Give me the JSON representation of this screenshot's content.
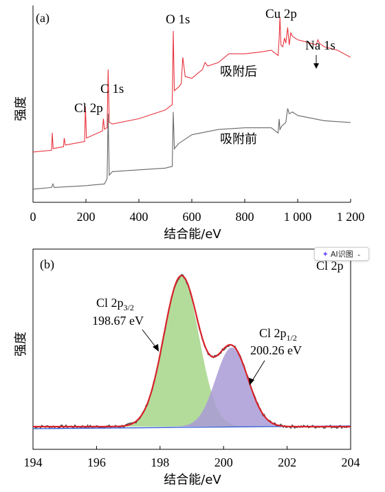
{
  "chart_data": [
    {
      "panel": "(a)",
      "type": "line",
      "ylabel": "强度",
      "xlabel": "结合能/eV",
      "xlim": [
        0,
        1200
      ],
      "x_ticks": [
        0,
        200,
        400,
        600,
        800,
        1000,
        1200
      ],
      "x_tick_labels": [
        "0",
        "200",
        "400",
        "600",
        "800",
        "1 000",
        "1 200"
      ],
      "series": [
        {
          "name": "吸附后",
          "color": "#e8323c",
          "points": [
            [
              0,
              0.31
            ],
            [
              70,
              0.32
            ],
            [
              73,
              0.42
            ],
            [
              76,
              0.33
            ],
            [
              115,
              0.34
            ],
            [
              118,
              0.39
            ],
            [
              122,
              0.35
            ],
            [
              195,
              0.37
            ],
            [
              198,
              0.57
            ],
            [
              202,
              0.39
            ],
            [
              262,
              0.43
            ],
            [
              266,
              0.5
            ],
            [
              270,
              0.44
            ],
            [
              280,
              0.45
            ],
            [
              284,
              0.78
            ],
            [
              288,
              0.48
            ],
            [
              300,
              0.47
            ],
            [
              400,
              0.5
            ],
            [
              500,
              0.55
            ],
            [
              526,
              0.58
            ],
            [
              530,
              1.0
            ],
            [
              534,
              0.66
            ],
            [
              550,
              0.68
            ],
            [
              560,
              0.7
            ],
            [
              566,
              0.85
            ],
            [
              575,
              0.74
            ],
            [
              600,
              0.73
            ],
            [
              640,
              0.78
            ],
            [
              650,
              0.82
            ],
            [
              660,
              0.8
            ],
            [
              700,
              0.82
            ],
            [
              740,
              0.87
            ],
            [
              800,
              0.87
            ],
            [
              860,
              0.88
            ],
            [
              900,
              0.89
            ],
            [
              926,
              0.86
            ],
            [
              930,
              0.96
            ],
            [
              933,
              1.08
            ],
            [
              937,
              0.92
            ],
            [
              944,
              0.91
            ],
            [
              950,
              0.96
            ],
            [
              955,
              0.93
            ],
            [
              962,
              1.02
            ],
            [
              968,
              0.92
            ],
            [
              974,
              0.99
            ],
            [
              980,
              0.97
            ],
            [
              1000,
              0.95
            ],
            [
              1050,
              0.93
            ],
            [
              1070,
              0.92
            ],
            [
              1076,
              0.95
            ],
            [
              1082,
              0.93
            ],
            [
              1100,
              0.91
            ],
            [
              1150,
              0.89
            ],
            [
              1200,
              0.85
            ]
          ]
        },
        {
          "name": "吸附前",
          "color": "#666666",
          "points": [
            [
              0,
              0.02
            ],
            [
              70,
              0.03
            ],
            [
              75,
              0.05
            ],
            [
              80,
              0.03
            ],
            [
              200,
              0.04
            ],
            [
              270,
              0.05
            ],
            [
              280,
              0.08
            ],
            [
              284,
              0.45
            ],
            [
              288,
              0.1
            ],
            [
              300,
              0.12
            ],
            [
              400,
              0.13
            ],
            [
              500,
              0.14
            ],
            [
              526,
              0.15
            ],
            [
              530,
              0.46
            ],
            [
              534,
              0.25
            ],
            [
              550,
              0.28
            ],
            [
              600,
              0.33
            ],
            [
              700,
              0.36
            ],
            [
              800,
              0.37
            ],
            [
              900,
              0.37
            ],
            [
              926,
              0.34
            ],
            [
              930,
              0.42
            ],
            [
              933,
              0.36
            ],
            [
              940,
              0.38
            ],
            [
              955,
              0.4
            ],
            [
              962,
              0.48
            ],
            [
              968,
              0.45
            ],
            [
              980,
              0.46
            ],
            [
              1000,
              0.44
            ],
            [
              1100,
              0.41
            ],
            [
              1200,
              0.4
            ]
          ]
        }
      ],
      "annotations": [
        {
          "text": "O 1s",
          "x": 530,
          "y": 1.0
        },
        {
          "text": "Cu 2p",
          "x": 933,
          "y": 1.08
        },
        {
          "text": "Na 1s",
          "x": 1072,
          "y": 0.93
        },
        {
          "text": "C 1s",
          "x": 284,
          "y": 0.78
        },
        {
          "text": "Cl 2p",
          "x": 198,
          "y": 0.57
        }
      ]
    },
    {
      "panel": "(b)",
      "type": "area",
      "title": "Cl 2p",
      "ylabel": "强度",
      "xlabel": "结合能/eV",
      "xlim": [
        194,
        204
      ],
      "x_ticks": [
        194,
        196,
        198,
        200,
        202,
        204
      ],
      "x_tick_labels": [
        "194",
        "196",
        "198",
        "200",
        "202",
        "204"
      ],
      "components": [
        {
          "name": "Cl 2p3/2",
          "center": 198.67,
          "height": 0.95,
          "fwhm": 1.3,
          "color": "#a6d68a"
        },
        {
          "name": "Cl 2p1/2",
          "center": 200.26,
          "height": 0.5,
          "fwhm": 1.2,
          "color": "#a99bd6"
        }
      ],
      "baseline": 0.0,
      "peak_labels": [
        {
          "label": "Cl 2p",
          "sub": "3/2",
          "value": "198.67 eV"
        },
        {
          "label": "Cl 2p",
          "sub": "1/2",
          "value": "200.26 eV"
        }
      ],
      "colors": {
        "envelope": "#d8232a",
        "raw": "#555555",
        "baseline": "#2e5bd6"
      }
    }
  ],
  "ai_chip": {
    "icon": "sparkle-icon",
    "label": "AI识图"
  }
}
